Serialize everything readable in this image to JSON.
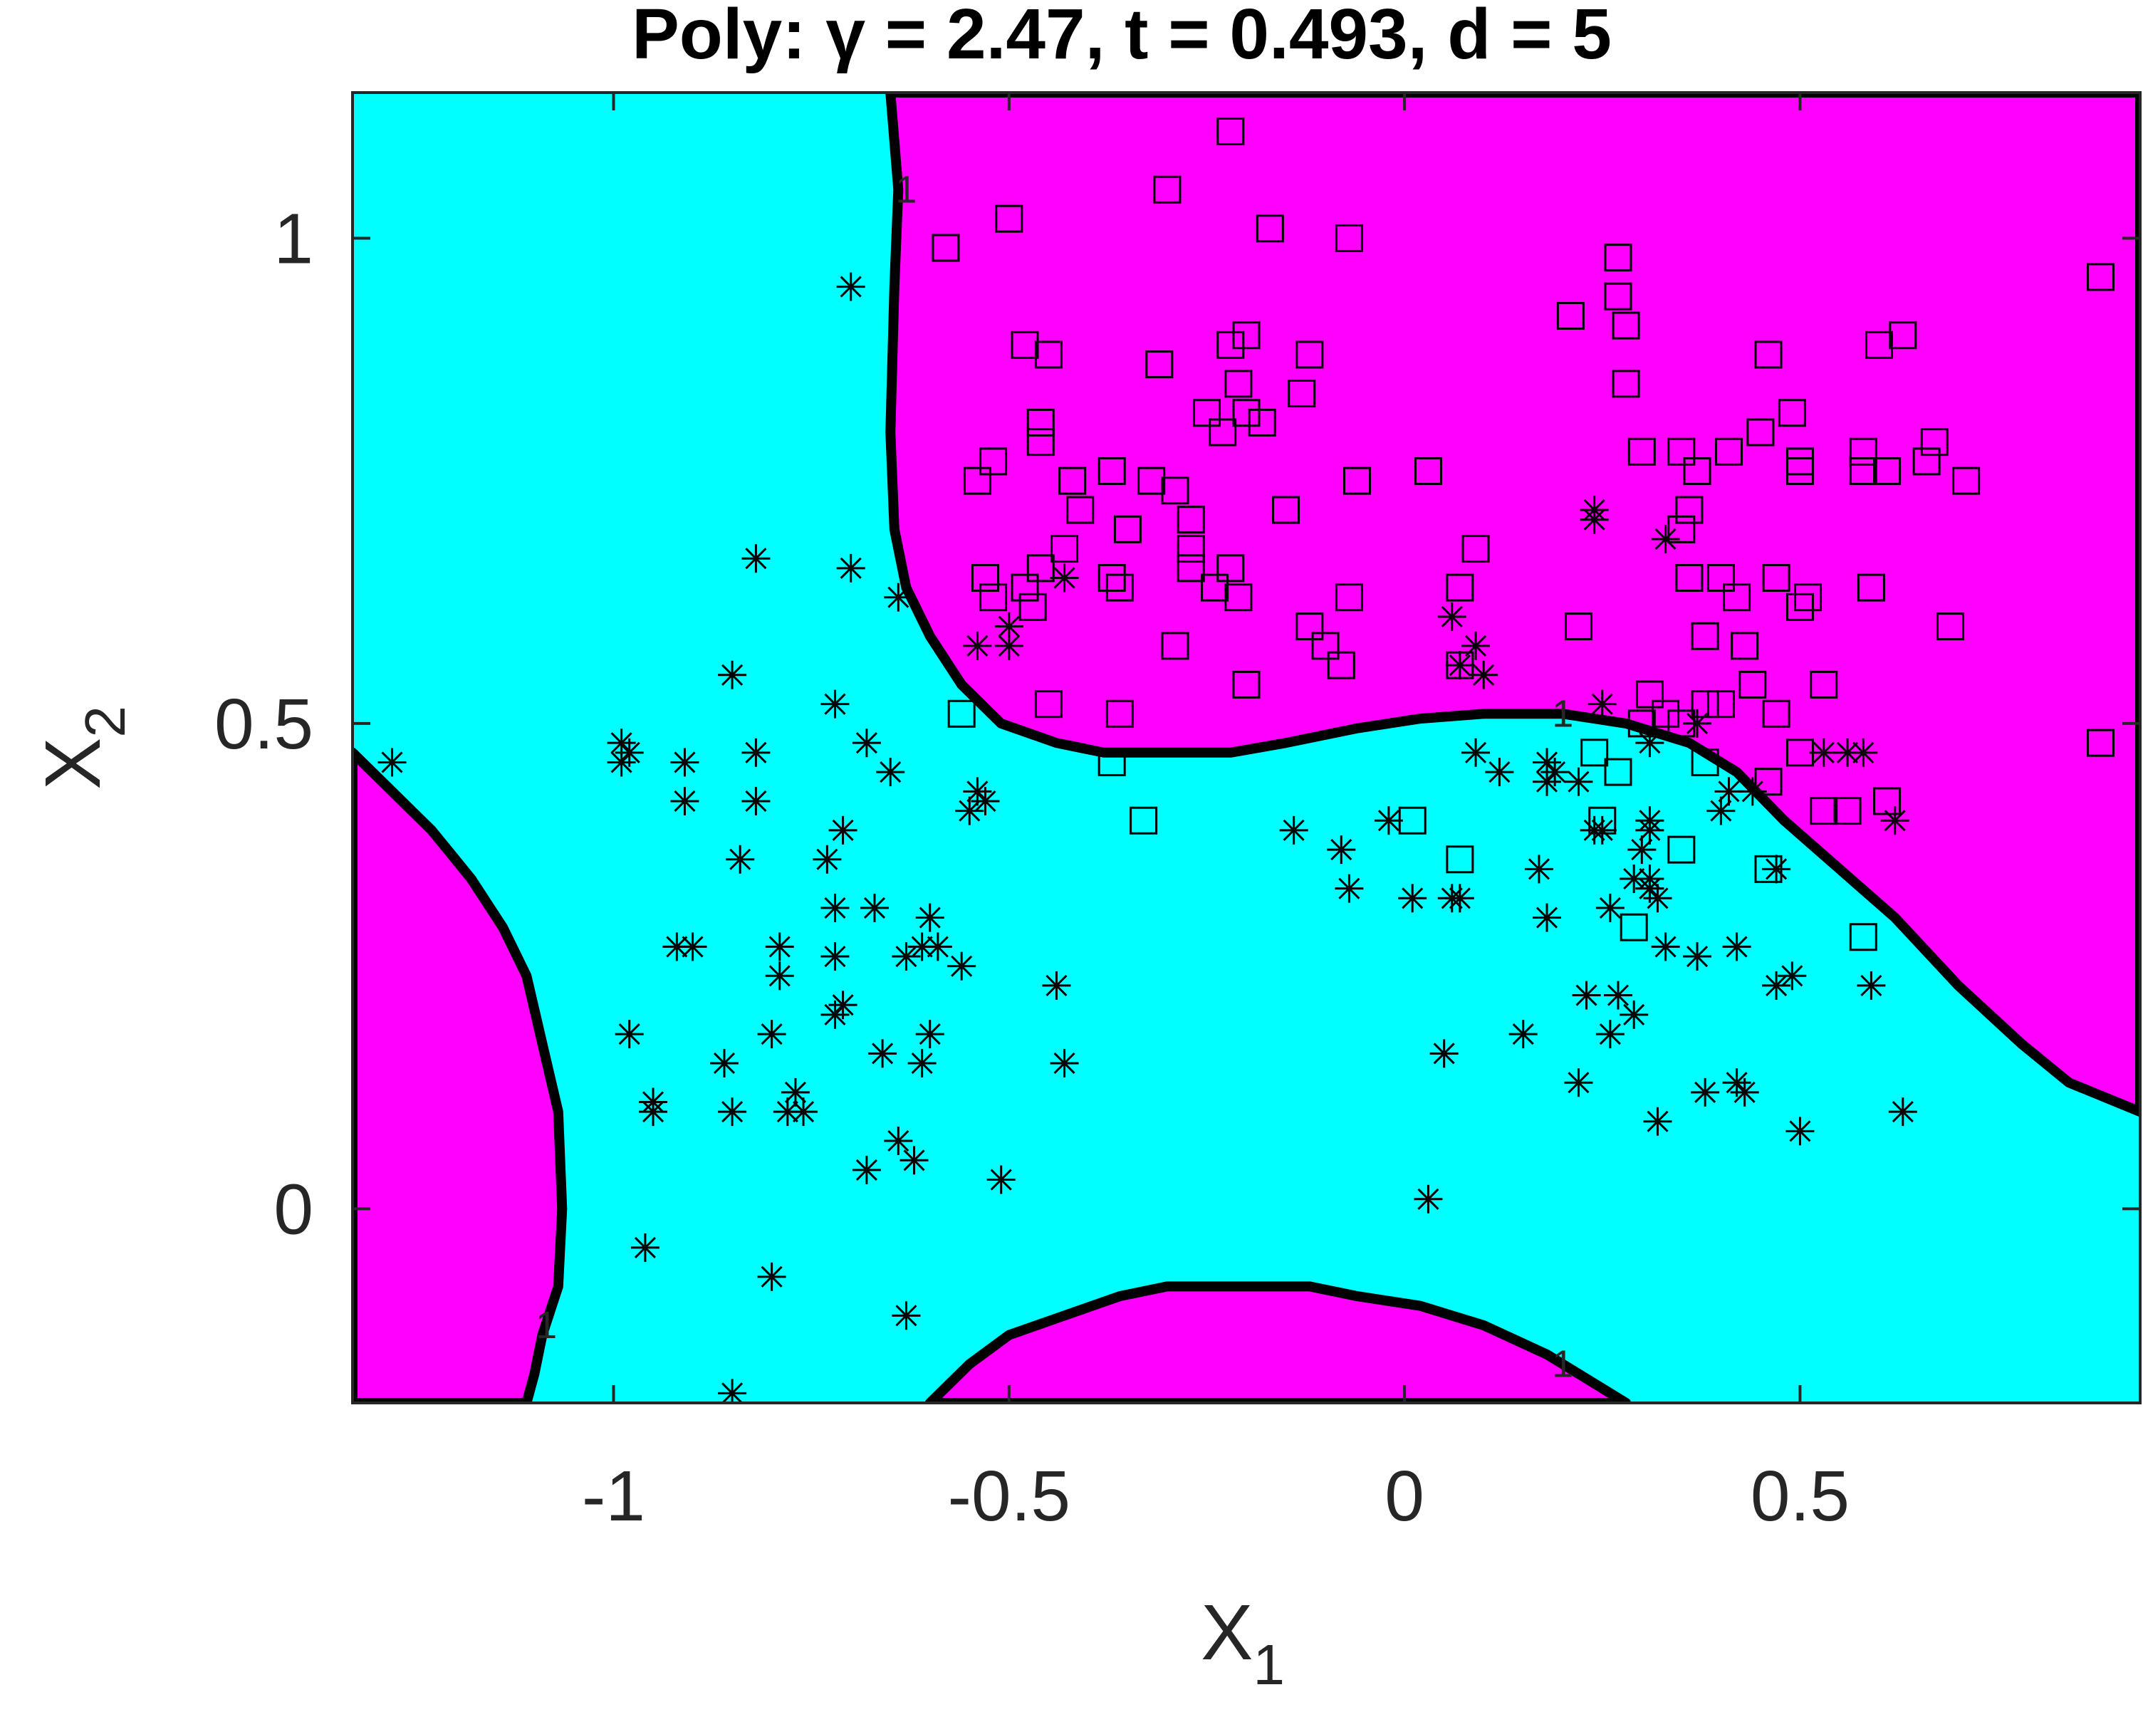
{
  "chart_data": {
    "type": "scatter",
    "title": "Poly: γ = 2.47, t = 0.493, d = 5",
    "xlabel": "X",
    "xlabel_sub": "1",
    "ylabel": "X",
    "ylabel_sub": "2",
    "xlim": [
      -1.33,
      0.93
    ],
    "ylim": [
      -0.2,
      1.15
    ],
    "xticks": [
      -1,
      -0.5,
      0,
      0.5
    ],
    "xtick_labels": [
      "-1",
      "-0.5",
      "0",
      "0.5"
    ],
    "yticks": [
      0,
      0.5,
      1
    ],
    "ytick_labels": [
      "0",
      "0.5",
      "1"
    ],
    "grid": false,
    "colors": {
      "region_positive": "#ff00ff",
      "region_negative": "#00ffff",
      "boundary": "#000000",
      "markers": "#000000"
    },
    "boundary_label": "1",
    "regions": [
      {
        "name": "positive-left",
        "color": "#ff00ff",
        "polygon": [
          [
            -1.33,
            -0.2
          ],
          [
            -1.33,
            0.47
          ],
          [
            -1.28,
            0.43
          ],
          [
            -1.23,
            0.39
          ],
          [
            -1.18,
            0.34
          ],
          [
            -1.14,
            0.29
          ],
          [
            -1.11,
            0.24
          ],
          [
            -1.09,
            0.17
          ],
          [
            -1.07,
            0.1
          ],
          [
            -1.065,
            0.0
          ],
          [
            -1.07,
            -0.08
          ],
          [
            -1.09,
            -0.13
          ],
          [
            -1.1,
            -0.17
          ],
          [
            -1.11,
            -0.2
          ]
        ]
      },
      {
        "name": "positive-top",
        "color": "#ff00ff",
        "polygon": [
          [
            -0.65,
            1.15
          ],
          [
            -0.64,
            1.05
          ],
          [
            -0.645,
            0.95
          ],
          [
            -0.65,
            0.8
          ],
          [
            -0.645,
            0.7
          ],
          [
            -0.63,
            0.64
          ],
          [
            -0.6,
            0.59
          ],
          [
            -0.56,
            0.54
          ],
          [
            -0.51,
            0.5
          ],
          [
            -0.44,
            0.48
          ],
          [
            -0.38,
            0.47
          ],
          [
            -0.3,
            0.47
          ],
          [
            -0.22,
            0.47
          ],
          [
            -0.15,
            0.48
          ],
          [
            -0.06,
            0.495
          ],
          [
            0.02,
            0.505
          ],
          [
            0.1,
            0.51
          ],
          [
            0.2,
            0.51
          ],
          [
            0.28,
            0.5
          ],
          [
            0.36,
            0.48
          ],
          [
            0.42,
            0.45
          ],
          [
            0.48,
            0.4
          ],
          [
            0.55,
            0.35
          ],
          [
            0.62,
            0.3
          ],
          [
            0.7,
            0.23
          ],
          [
            0.78,
            0.17
          ],
          [
            0.84,
            0.13
          ],
          [
            0.93,
            0.1
          ],
          [
            0.93,
            1.15
          ]
        ]
      },
      {
        "name": "positive-bottom",
        "color": "#ff00ff",
        "polygon": [
          [
            -0.6,
            -0.2
          ],
          [
            -0.55,
            -0.16
          ],
          [
            -0.5,
            -0.13
          ],
          [
            -0.43,
            -0.11
          ],
          [
            -0.36,
            -0.09
          ],
          [
            -0.3,
            -0.08
          ],
          [
            -0.22,
            -0.08
          ],
          [
            -0.12,
            -0.08
          ],
          [
            -0.06,
            -0.09
          ],
          [
            0.02,
            -0.1
          ],
          [
            0.1,
            -0.12
          ],
          [
            0.18,
            -0.15
          ],
          [
            0.24,
            -0.18
          ],
          [
            0.28,
            -0.2
          ]
        ]
      }
    ],
    "series": [
      {
        "marker": "square",
        "points": [
          [
            -0.58,
            0.99
          ],
          [
            -0.5,
            1.02
          ],
          [
            -0.3,
            1.05
          ],
          [
            -0.22,
            1.11
          ],
          [
            -0.17,
            1.01
          ],
          [
            -0.07,
            1.0
          ],
          [
            -0.48,
            0.89
          ],
          [
            -0.45,
            0.88
          ],
          [
            -0.31,
            0.87
          ],
          [
            -0.22,
            0.89
          ],
          [
            -0.2,
            0.9
          ],
          [
            -0.12,
            0.88
          ],
          [
            -0.2,
            0.82
          ],
          [
            -0.18,
            0.81
          ],
          [
            -0.25,
            0.82
          ],
          [
            -0.23,
            0.8
          ],
          [
            -0.21,
            0.85
          ],
          [
            -0.13,
            0.84
          ],
          [
            -0.46,
            0.81
          ],
          [
            -0.46,
            0.79
          ],
          [
            -0.54,
            0.75
          ],
          [
            -0.52,
            0.77
          ],
          [
            -0.42,
            0.75
          ],
          [
            -0.37,
            0.76
          ],
          [
            -0.32,
            0.75
          ],
          [
            -0.29,
            0.74
          ],
          [
            -0.41,
            0.72
          ],
          [
            -0.35,
            0.7
          ],
          [
            -0.27,
            0.71
          ],
          [
            -0.15,
            0.72
          ],
          [
            -0.06,
            0.75
          ],
          [
            0.03,
            0.76
          ],
          [
            -0.43,
            0.68
          ],
          [
            -0.46,
            0.66
          ],
          [
            -0.53,
            0.65
          ],
          [
            -0.52,
            0.63
          ],
          [
            -0.48,
            0.64
          ],
          [
            -0.47,
            0.62
          ],
          [
            -0.37,
            0.65
          ],
          [
            -0.36,
            0.64
          ],
          [
            -0.27,
            0.68
          ],
          [
            -0.27,
            0.66
          ],
          [
            -0.24,
            0.64
          ],
          [
            -0.22,
            0.66
          ],
          [
            -0.21,
            0.63
          ],
          [
            -0.29,
            0.58
          ],
          [
            -0.12,
            0.6
          ],
          [
            -0.1,
            0.58
          ],
          [
            -0.07,
            0.63
          ],
          [
            -0.08,
            0.56
          ],
          [
            -0.2,
            0.54
          ],
          [
            -0.45,
            0.52
          ],
          [
            -0.36,
            0.51
          ],
          [
            -0.56,
            0.51
          ],
          [
            -0.37,
            0.46
          ],
          [
            -0.33,
            0.4
          ],
          [
            0.07,
            0.64
          ],
          [
            0.09,
            0.68
          ],
          [
            0.07,
            0.56
          ],
          [
            0.22,
            0.6
          ],
          [
            0.01,
            0.4
          ],
          [
            0.07,
            0.36
          ],
          [
            0.27,
            0.98
          ],
          [
            0.27,
            0.94
          ],
          [
            0.28,
            0.91
          ],
          [
            0.21,
            0.92
          ],
          [
            0.28,
            0.85
          ],
          [
            0.3,
            0.78
          ],
          [
            0.35,
            0.78
          ],
          [
            0.36,
            0.72
          ],
          [
            0.35,
            0.7
          ],
          [
            0.37,
            0.76
          ],
          [
            0.41,
            0.78
          ],
          [
            0.45,
            0.8
          ],
          [
            0.46,
            0.88
          ],
          [
            0.49,
            0.82
          ],
          [
            0.5,
            0.77
          ],
          [
            0.5,
            0.76
          ],
          [
            0.58,
            0.76
          ],
          [
            0.6,
            0.89
          ],
          [
            0.63,
            0.9
          ],
          [
            0.67,
            0.79
          ],
          [
            0.66,
            0.77
          ],
          [
            0.71,
            0.75
          ],
          [
            0.58,
            0.78
          ],
          [
            0.61,
            0.76
          ],
          [
            0.36,
            0.65
          ],
          [
            0.4,
            0.65
          ],
          [
            0.42,
            0.63
          ],
          [
            0.47,
            0.65
          ],
          [
            0.5,
            0.62
          ],
          [
            0.51,
            0.63
          ],
          [
            0.59,
            0.64
          ],
          [
            0.69,
            0.6
          ],
          [
            0.38,
            0.59
          ],
          [
            0.43,
            0.58
          ],
          [
            0.44,
            0.54
          ],
          [
            0.38,
            0.52
          ],
          [
            0.4,
            0.52
          ],
          [
            0.47,
            0.51
          ],
          [
            0.53,
            0.54
          ],
          [
            0.33,
            0.51
          ],
          [
            0.3,
            0.5
          ],
          [
            0.31,
            0.53
          ],
          [
            0.35,
            0.5
          ],
          [
            0.38,
            0.46
          ],
          [
            0.46,
            0.44
          ],
          [
            0.5,
            0.47
          ],
          [
            0.24,
            0.47
          ],
          [
            0.27,
            0.45
          ],
          [
            0.25,
            0.4
          ],
          [
            0.35,
            0.37
          ],
          [
            0.53,
            0.41
          ],
          [
            0.56,
            0.41
          ],
          [
            0.61,
            0.42
          ],
          [
            0.46,
            0.35
          ],
          [
            0.29,
            0.29
          ],
          [
            0.58,
            0.28
          ],
          [
            0.88,
            0.96
          ],
          [
            0.88,
            0.48
          ]
        ]
      },
      {
        "marker": "star",
        "points": [
          [
            -0.7,
            0.95
          ],
          [
            -1.28,
            0.46
          ],
          [
            -0.82,
            0.67
          ],
          [
            -0.7,
            0.66
          ],
          [
            -0.64,
            0.63
          ],
          [
            -0.85,
            0.55
          ],
          [
            -0.72,
            0.52
          ],
          [
            -0.68,
            0.48
          ],
          [
            -0.99,
            0.48
          ],
          [
            -0.98,
            0.47
          ],
          [
            -0.99,
            0.46
          ],
          [
            -0.91,
            0.46
          ],
          [
            -0.82,
            0.47
          ],
          [
            -0.65,
            0.45
          ],
          [
            -0.91,
            0.42
          ],
          [
            -0.82,
            0.42
          ],
          [
            -0.54,
            0.43
          ],
          [
            -0.53,
            0.42
          ],
          [
            -0.55,
            0.41
          ],
          [
            -0.71,
            0.39
          ],
          [
            -0.84,
            0.36
          ],
          [
            -0.73,
            0.36
          ],
          [
            -0.67,
            0.31
          ],
          [
            -0.72,
            0.31
          ],
          [
            -0.92,
            0.27
          ],
          [
            -0.9,
            0.27
          ],
          [
            -0.79,
            0.27
          ],
          [
            -0.72,
            0.26
          ],
          [
            -0.63,
            0.26
          ],
          [
            -0.6,
            0.3
          ],
          [
            -0.61,
            0.27
          ],
          [
            -0.59,
            0.27
          ],
          [
            -0.56,
            0.25
          ],
          [
            -0.79,
            0.24
          ],
          [
            -0.44,
            0.23
          ],
          [
            -0.71,
            0.21
          ],
          [
            -0.72,
            0.2
          ],
          [
            -0.98,
            0.18
          ],
          [
            -0.8,
            0.18
          ],
          [
            -0.6,
            0.18
          ],
          [
            -0.66,
            0.16
          ],
          [
            -0.61,
            0.15
          ],
          [
            -0.43,
            0.15
          ],
          [
            -0.86,
            0.15
          ],
          [
            -0.95,
            0.11
          ],
          [
            -0.95,
            0.1
          ],
          [
            -0.85,
            0.1
          ],
          [
            -0.77,
            0.12
          ],
          [
            -0.78,
            0.1
          ],
          [
            -0.76,
            0.1
          ],
          [
            -0.64,
            0.07
          ],
          [
            -0.62,
            0.05
          ],
          [
            -0.68,
            0.04
          ],
          [
            -0.51,
            0.03
          ],
          [
            -0.96,
            -0.04
          ],
          [
            -0.8,
            -0.07
          ],
          [
            -0.63,
            -0.11
          ],
          [
            -0.85,
            -0.19
          ],
          [
            -0.5,
            0.6
          ],
          [
            -0.54,
            0.58
          ],
          [
            -0.5,
            0.58
          ],
          [
            -0.43,
            0.65
          ],
          [
            0.06,
            0.61
          ],
          [
            0.09,
            0.58
          ],
          [
            0.1,
            0.55
          ],
          [
            0.07,
            0.56
          ],
          [
            0.24,
            0.72
          ],
          [
            0.24,
            0.71
          ],
          [
            0.33,
            0.69
          ],
          [
            -0.14,
            0.39
          ],
          [
            -0.08,
            0.37
          ],
          [
            -0.07,
            0.33
          ],
          [
            -0.02,
            0.4
          ],
          [
            0.01,
            0.32
          ],
          [
            0.06,
            0.32
          ],
          [
            0.07,
            0.32
          ],
          [
            0.09,
            0.47
          ],
          [
            0.12,
            0.45
          ],
          [
            0.18,
            0.46
          ],
          [
            0.19,
            0.45
          ],
          [
            0.18,
            0.44
          ],
          [
            0.22,
            0.44
          ],
          [
            0.25,
            0.39
          ],
          [
            0.24,
            0.39
          ],
          [
            0.31,
            0.4
          ],
          [
            0.31,
            0.39
          ],
          [
            0.3,
            0.37
          ],
          [
            0.29,
            0.34
          ],
          [
            0.31,
            0.33
          ],
          [
            0.31,
            0.34
          ],
          [
            0.32,
            0.32
          ],
          [
            0.17,
            0.35
          ],
          [
            0.18,
            0.3
          ],
          [
            0.26,
            0.31
          ],
          [
            0.31,
            0.33
          ],
          [
            0.33,
            0.27
          ],
          [
            0.37,
            0.26
          ],
          [
            0.42,
            0.27
          ],
          [
            0.4,
            0.41
          ],
          [
            0.41,
            0.43
          ],
          [
            0.44,
            0.43
          ],
          [
            0.31,
            0.48
          ],
          [
            0.37,
            0.5
          ],
          [
            0.53,
            0.47
          ],
          [
            0.56,
            0.47
          ],
          [
            0.58,
            0.47
          ],
          [
            0.62,
            0.4
          ],
          [
            0.47,
            0.35
          ],
          [
            0.23,
            0.22
          ],
          [
            0.27,
            0.22
          ],
          [
            0.29,
            0.2
          ],
          [
            0.26,
            0.18
          ],
          [
            0.15,
            0.18
          ],
          [
            0.22,
            0.13
          ],
          [
            0.05,
            0.16
          ],
          [
            0.38,
            0.12
          ],
          [
            0.42,
            0.13
          ],
          [
            0.43,
            0.12
          ],
          [
            0.47,
            0.23
          ],
          [
            0.49,
            0.24
          ],
          [
            0.59,
            0.23
          ],
          [
            0.32,
            0.09
          ],
          [
            0.5,
            0.08
          ],
          [
            0.63,
            0.1
          ],
          [
            0.03,
            0.01
          ],
          [
            0.25,
            0.52
          ]
        ]
      }
    ]
  }
}
